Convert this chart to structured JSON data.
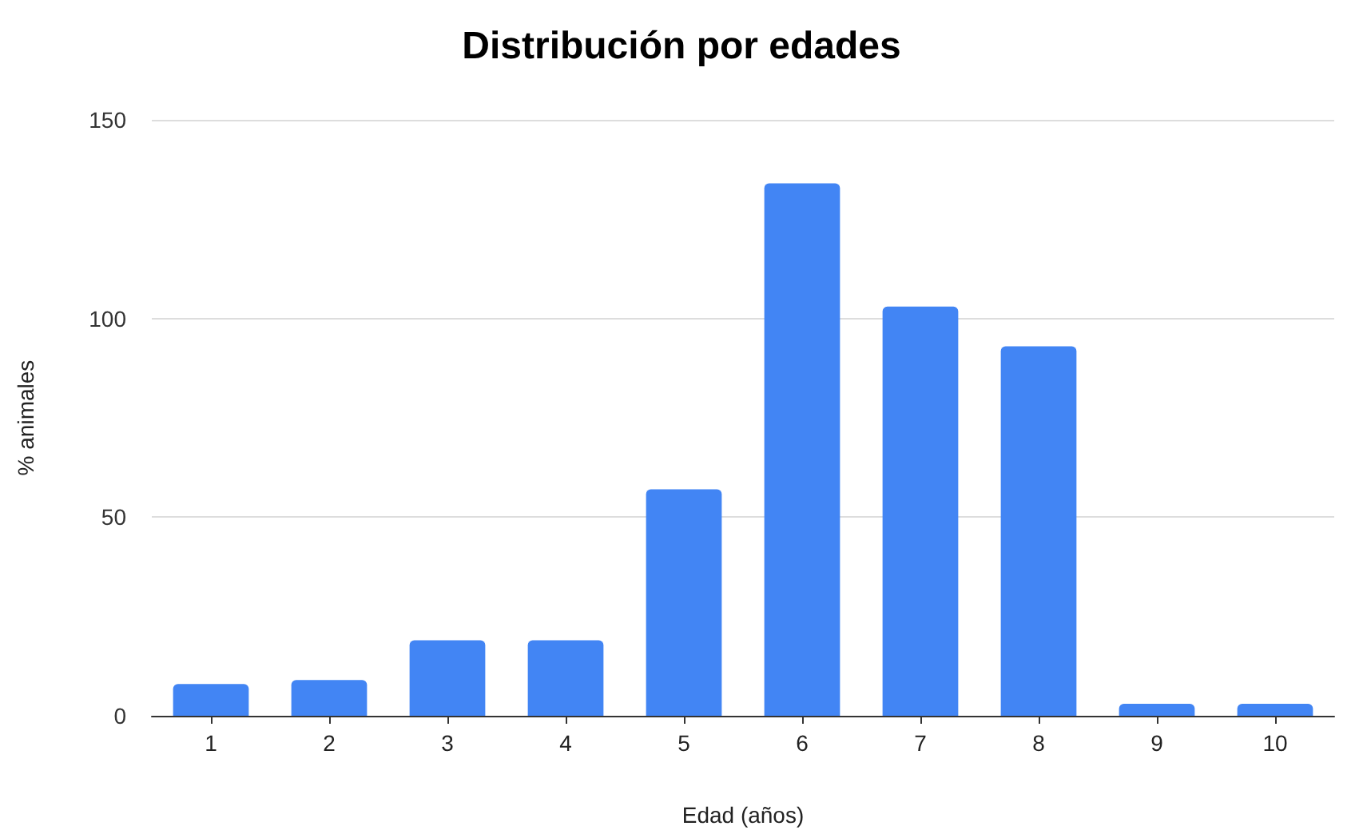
{
  "chart_data": {
    "type": "bar",
    "title": "Distribución por edades",
    "xlabel": "Edad (años)",
    "ylabel": "% animales",
    "categories": [
      "1",
      "2",
      "3",
      "4",
      "5",
      "6",
      "7",
      "8",
      "9",
      "10"
    ],
    "series": [
      {
        "color": "#4285f4",
        "values": [
          8,
          9,
          19,
          19,
          57,
          134,
          103,
          93,
          3,
          3
        ]
      }
    ],
    "ylim": [
      0,
      150
    ],
    "yticks": [
      0,
      50,
      100,
      150
    ],
    "grid": "y"
  }
}
